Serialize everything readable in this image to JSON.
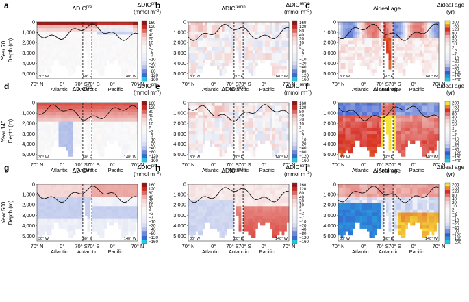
{
  "figure": {
    "row_labels": [
      "Year 70",
      "Year 140",
      "Year 500"
    ],
    "depth_axis_label": "Depth (m)",
    "depth_ticks": [
      "0",
      "1,000",
      "2,000",
      "3,000",
      "4,000",
      "5,000"
    ],
    "x_ticks": [
      "70° N",
      "0°",
      "70° S",
      "70° S",
      "0°",
      "70° N"
    ],
    "basin_labels": [
      "Atlantic",
      "Antarctic",
      "Pacific"
    ],
    "section_labels": [
      "30° W",
      "60° E",
      "140° W"
    ],
    "columns": [
      {
        "var": "ΔDIC",
        "sup": "pre",
        "units": "(mmol m",
        "units_sup": "−3",
        "units_close": ")"
      },
      {
        "var": "ΔDIC",
        "sup": "remin",
        "units": "(mmol m",
        "units_sup": "−3",
        "units_close": ")"
      },
      {
        "var": "Δideal age",
        "sup": "",
        "units": "(yr)",
        "units_sup": "",
        "units_close": ""
      }
    ],
    "colorbar_dic": [
      "160",
      "120",
      "80",
      "40",
      "20",
      "10",
      "2",
      "−2",
      "−7",
      "−10",
      "−20",
      "−40",
      "−80",
      "−120",
      "−160"
    ],
    "colorbar_age": [
      "200",
      "160",
      "120",
      "80",
      "40",
      "20",
      "10",
      "2",
      "−2",
      "−7",
      "−10",
      "−20",
      "−40",
      "−80",
      "−120",
      "−160",
      "−200"
    ],
    "colors": {
      "positive": "#e0402c",
      "negative": "#3a64d0",
      "low": "#20c8e8",
      "high": "#f7e13c"
    }
  },
  "chart_data": [
    {
      "panel": "a",
      "type": "heatmap",
      "title": "ΔDIC pre",
      "row": "Year 70",
      "ylim": [
        5500,
        0
      ],
      "pattern": "surface_positive",
      "range": [
        -160,
        160
      ]
    },
    {
      "panel": "b",
      "type": "heatmap",
      "title": "ΔDIC remin",
      "row": "Year 70",
      "ylim": [
        5500,
        0
      ],
      "pattern": "weak_mixed",
      "range": [
        -160,
        160
      ]
    },
    {
      "panel": "c",
      "type": "heatmap",
      "title": "Δideal age",
      "row": "Year 70",
      "ylim": [
        5500,
        0
      ],
      "pattern": "upper_negative",
      "range": [
        -200,
        200
      ]
    },
    {
      "panel": "d",
      "type": "heatmap",
      "title": "ΔDIC pre",
      "row": "Year 140",
      "ylim": [
        5500,
        0
      ],
      "pattern": "upper_positive",
      "range": [
        -160,
        160
      ]
    },
    {
      "panel": "e",
      "type": "heatmap",
      "title": "ΔDIC remin",
      "row": "Year 140",
      "ylim": [
        5500,
        0
      ],
      "pattern": "weak_mixed",
      "range": [
        -160,
        160
      ]
    },
    {
      "panel": "f",
      "type": "heatmap",
      "title": "Δideal age",
      "row": "Year 140",
      "ylim": [
        5500,
        0
      ],
      "pattern": "deep_positive",
      "range": [
        -200,
        200
      ]
    },
    {
      "panel": "g",
      "type": "heatmap",
      "title": "ΔDIC pre",
      "row": "Year 500",
      "ylim": [
        5500,
        0
      ],
      "pattern": "mid_negative",
      "range": [
        -160,
        160
      ]
    },
    {
      "panel": "h",
      "type": "heatmap",
      "title": "ΔDIC remin",
      "row": "Year 500",
      "ylim": [
        5500,
        0
      ],
      "pattern": "deep_pos_pacific",
      "range": [
        -160,
        160
      ]
    },
    {
      "panel": "i",
      "type": "heatmap",
      "title": "Δideal age",
      "row": "Year 500",
      "ylim": [
        5500,
        0
      ],
      "pattern": "deep_blue_yellow",
      "range": [
        -200,
        200
      ]
    }
  ]
}
